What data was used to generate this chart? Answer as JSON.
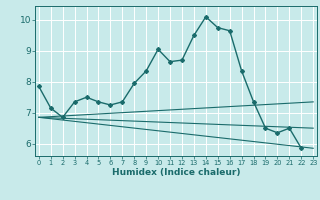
{
  "xlabel": "Humidex (Indice chaleur)",
  "background_color": "#c8eaea",
  "grid_color": "#ffffff",
  "line_color": "#1a6b6b",
  "x_ticks": [
    0,
    1,
    2,
    3,
    4,
    5,
    6,
    7,
    8,
    9,
    10,
    11,
    12,
    13,
    14,
    15,
    16,
    17,
    18,
    19,
    20,
    21,
    22,
    23
  ],
  "ylim": [
    5.6,
    10.45
  ],
  "xlim": [
    -0.3,
    23.3
  ],
  "yticks": [
    6,
    7,
    8,
    9,
    10
  ],
  "lines": [
    {
      "x": [
        0,
        1,
        2,
        3,
        4,
        5,
        6,
        7,
        8,
        9,
        10,
        11,
        12,
        13,
        14,
        15,
        16,
        17,
        18,
        19,
        20,
        21,
        22
      ],
      "y": [
        7.85,
        7.15,
        6.85,
        7.35,
        7.5,
        7.35,
        7.25,
        7.35,
        7.95,
        8.35,
        9.05,
        8.65,
        8.7,
        9.5,
        10.1,
        9.75,
        9.65,
        8.35,
        7.35,
        6.5,
        6.35,
        6.5,
        5.85
      ],
      "marker": true,
      "linewidth": 1.0
    },
    {
      "x": [
        0,
        23
      ],
      "y": [
        6.85,
        7.35
      ],
      "marker": false,
      "linewidth": 0.8
    },
    {
      "x": [
        0,
        23
      ],
      "y": [
        6.85,
        6.5
      ],
      "marker": false,
      "linewidth": 0.8
    },
    {
      "x": [
        0,
        23
      ],
      "y": [
        6.85,
        5.85
      ],
      "marker": false,
      "linewidth": 0.8
    }
  ]
}
